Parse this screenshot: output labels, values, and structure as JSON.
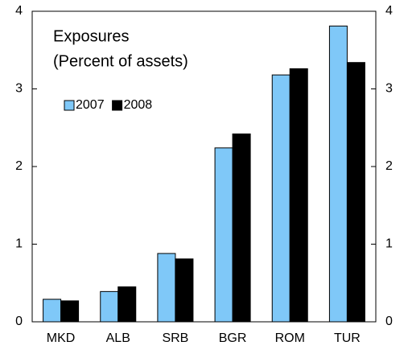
{
  "chart_data": {
    "type": "bar",
    "title": "Exposures",
    "subtitle": "(Percent of assets)",
    "categories": [
      "MKD",
      "ALB",
      "SRB",
      "BGR",
      "ROM",
      "TUR"
    ],
    "series": [
      {
        "name": "2007",
        "color": "#7fc8f8",
        "values": [
          0.29,
          0.39,
          0.88,
          2.24,
          3.18,
          3.81
        ]
      },
      {
        "name": "2008",
        "color": "#000000",
        "values": [
          0.27,
          0.45,
          0.81,
          2.42,
          3.26,
          3.34
        ]
      }
    ],
    "ylim": [
      0,
      4
    ],
    "yticks": [
      0,
      1,
      2,
      3,
      4
    ],
    "y2lim": [
      0,
      4
    ],
    "y2ticks": [
      0,
      1,
      2,
      3,
      4
    ],
    "grid": false,
    "legend": "upper-left"
  }
}
